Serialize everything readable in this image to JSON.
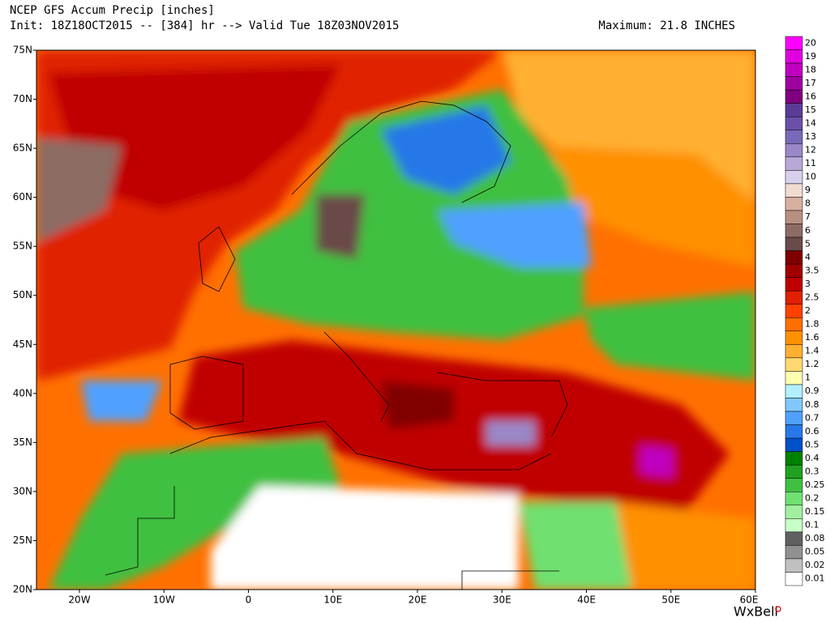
{
  "header": {
    "title": "NCEP GFS Accum Precip [inches]",
    "init": "Init: 18Z18OCT2015 -- [384] hr --> Valid Tue 18Z03NOV2015",
    "maximum": "Maximum: 21.8 INCHES"
  },
  "map": {
    "lat_labels": [
      "75N",
      "70N",
      "65N",
      "60N",
      "55N",
      "50N",
      "45N",
      "40N",
      "35N",
      "30N",
      "25N",
      "20N"
    ],
    "lon_labels": [
      "20W",
      "10W",
      "0",
      "10E",
      "20E",
      "30E",
      "40E",
      "50E",
      "60E"
    ]
  },
  "colorbar": [
    {
      "label": "20",
      "color": "#ff00ff"
    },
    {
      "label": "19",
      "color": "#e000e0"
    },
    {
      "label": "18",
      "color": "#c000c0"
    },
    {
      "label": "17",
      "color": "#a000a0"
    },
    {
      "label": "16",
      "color": "#800080"
    },
    {
      "label": "15",
      "color": "#5a3c96"
    },
    {
      "label": "14",
      "color": "#6a50a8"
    },
    {
      "label": "13",
      "color": "#7a68b8"
    },
    {
      "label": "12",
      "color": "#9a88c8"
    },
    {
      "label": "11",
      "color": "#b8a8d8"
    },
    {
      "label": "10",
      "color": "#d8d0ec"
    },
    {
      "label": "9",
      "color": "#f0dcd0"
    },
    {
      "label": "8",
      "color": "#d8b0a0"
    },
    {
      "label": "7",
      "color": "#b89080"
    },
    {
      "label": "6",
      "color": "#8c6c64"
    },
    {
      "label": "5",
      "color": "#6a4a4a"
    },
    {
      "label": "4",
      "color": "#800000"
    },
    {
      "label": "3.5",
      "color": "#a00000"
    },
    {
      "label": "3",
      "color": "#c00000"
    },
    {
      "label": "2.5",
      "color": "#e02000"
    },
    {
      "label": "2",
      "color": "#ff4000"
    },
    {
      "label": "1.8",
      "color": "#ff7000"
    },
    {
      "label": "1.6",
      "color": "#ff9000"
    },
    {
      "label": "1.4",
      "color": "#ffb030"
    },
    {
      "label": "1.2",
      "color": "#ffd870"
    },
    {
      "label": "1",
      "color": "#ffffb0"
    },
    {
      "label": "0.9",
      "color": "#b0f0ff"
    },
    {
      "label": "0.8",
      "color": "#80c8ff"
    },
    {
      "label": "0.7",
      "color": "#50a0ff"
    },
    {
      "label": "0.6",
      "color": "#2878e8"
    },
    {
      "label": "0.5",
      "color": "#0050c8"
    },
    {
      "label": "0.4",
      "color": "#008000"
    },
    {
      "label": "0.3",
      "color": "#20a020"
    },
    {
      "label": "0.25",
      "color": "#40c040"
    },
    {
      "label": "0.2",
      "color": "#70e070"
    },
    {
      "label": "0.15",
      "color": "#a0f0a0"
    },
    {
      "label": "0.1",
      "color": "#c8ffc8"
    },
    {
      "label": "0.08",
      "color": "#606060"
    },
    {
      "label": "0.05",
      "color": "#909090"
    },
    {
      "label": "0.02",
      "color": "#c0c0c0"
    },
    {
      "label": "0.01",
      "color": "#ffffff"
    }
  ],
  "credit": "WxBell"
}
